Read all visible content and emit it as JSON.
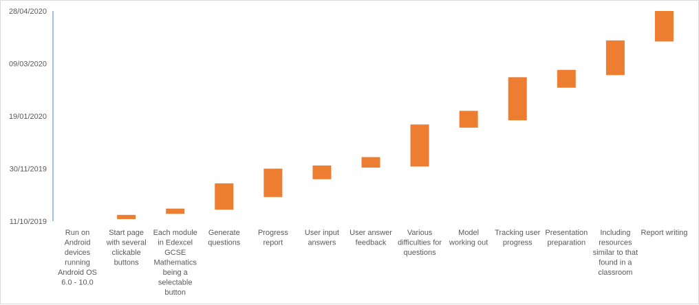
{
  "chart_data": {
    "type": "bar",
    "orientation": "vertical-floating",
    "title": "",
    "xlabel": "",
    "ylabel": "",
    "grid": false,
    "legend": "none",
    "bar_color": "#ED7D31",
    "axis_color": "#5B9BD5",
    "y_tick_labels": [
      "11/10/2019",
      "30/11/2019",
      "19/01/2020",
      "09/03/2020",
      "28/04/2020"
    ],
    "ylim": [
      "2019-10-11",
      "2020-04-28"
    ],
    "categories": [
      "Run on Android devices running Android OS 6.0 - 10.0",
      "Start page with several clickable buttons",
      "Each module in Edexcel GCSE Mathematics being a selectable button",
      "Generate questions",
      "Progress report",
      "User input answers",
      "User answer feedback",
      "Various difficulties for questions",
      "Model working out",
      "Tracking user progress",
      "Presentation preparation",
      "Including resources similar to that found in a classroom",
      "Report writing"
    ],
    "category_lines": [
      [
        "Run on",
        "Android",
        "devices",
        "running",
        "Android OS",
        "6.0 - 10.0"
      ],
      [
        "Start page",
        "with several",
        "clickable",
        "buttons"
      ],
      [
        "Each module",
        "in Edexcel",
        "GCSE",
        "Mathematics",
        "being a",
        "selectable",
        "button"
      ],
      [
        "Generate",
        "questions"
      ],
      [
        "Progress",
        "report"
      ],
      [
        "User input",
        "answers"
      ],
      [
        "User answer",
        "feedback"
      ],
      [
        "Various",
        "difficulties for",
        "questions"
      ],
      [
        "Model",
        "working out"
      ],
      [
        "Tracking user",
        "progress"
      ],
      [
        "Presentation",
        "preparation"
      ],
      [
        "Including",
        "resources",
        "similar to that",
        "found in a",
        "classroom"
      ],
      [
        "Report writing"
      ]
    ],
    "series": [
      {
        "start": [
          "2019-10-11",
          "2019-10-13",
          "2019-10-18",
          "2019-10-22",
          "2019-11-03",
          "2019-11-20",
          "2019-12-01",
          "2019-12-02",
          "2020-01-08",
          "2020-01-15",
          "2020-02-15",
          "2020-02-27",
          "2020-03-30"
        ],
        "end": [
          "2019-10-11",
          "2019-10-17",
          "2019-10-23",
          "2019-11-16",
          "2019-11-30",
          "2019-12-03",
          "2019-12-11",
          "2020-01-11",
          "2020-01-24",
          "2020-02-25",
          "2020-03-03",
          "2020-03-31",
          "2020-04-28"
        ]
      }
    ]
  }
}
